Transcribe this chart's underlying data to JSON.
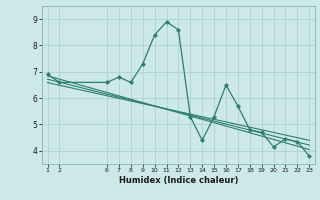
{
  "xlabel": "Humidex (Indice chaleur)",
  "bg_color": "#cce8e8",
  "line_color": "#2e7d70",
  "grid_color": "#aacece",
  "x_ticks": [
    1,
    2,
    6,
    7,
    8,
    9,
    10,
    11,
    12,
    13,
    14,
    15,
    16,
    17,
    18,
    19,
    20,
    21,
    22,
    23
  ],
  "xlim": [
    0.5,
    23.5
  ],
  "ylim": [
    3.5,
    9.5
  ],
  "y_ticks": [
    4,
    5,
    6,
    7,
    8,
    9
  ],
  "series1_x": [
    1,
    2,
    6,
    7,
    8,
    9,
    10,
    11,
    12,
    13,
    14,
    15,
    16,
    17,
    18,
    19,
    20,
    21,
    22,
    23
  ],
  "series1_y": [
    6.9,
    6.6,
    6.6,
    6.8,
    6.6,
    7.3,
    8.4,
    8.9,
    8.6,
    5.3,
    4.4,
    5.3,
    6.5,
    5.7,
    4.8,
    4.7,
    4.15,
    4.45,
    4.35,
    3.8
  ],
  "series2_x": [
    1,
    23
  ],
  "series2_y": [
    6.85,
    4.05
  ],
  "series3_x": [
    1,
    23
  ],
  "series3_y": [
    6.72,
    4.22
  ],
  "series4_x": [
    1,
    23
  ],
  "series4_y": [
    6.59,
    4.4
  ]
}
